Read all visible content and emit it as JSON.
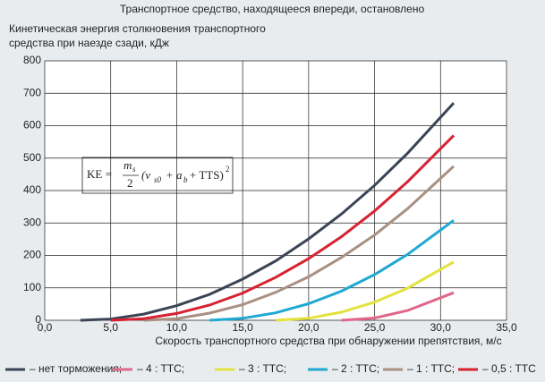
{
  "chart_data": {
    "type": "line",
    "title": "Транспортное средство, находящееся впереди, остановлено",
    "y_label_lines": [
      "Кинетическая энергия столкновения транспортного",
      "средства при наезде сзади, кДж"
    ],
    "x_label": "Скорость транспортного средства при обнаружении препятствия, м/с",
    "xlim": [
      0,
      35
    ],
    "ylim": [
      0,
      800
    ],
    "xticks": [
      {
        "value": 0,
        "label": "0,0"
      },
      {
        "value": 5,
        "label": "5,0"
      },
      {
        "value": 10,
        "label": "10,0"
      },
      {
        "value": 15,
        "label": "15,0"
      },
      {
        "value": 20,
        "label": "20,0"
      },
      {
        "value": 25,
        "label": "25,0"
      },
      {
        "value": 30,
        "label": "30,0"
      },
      {
        "value": 35,
        "label": "35,0"
      }
    ],
    "yticks": [
      0,
      100,
      200,
      300,
      400,
      500,
      600,
      700,
      800
    ],
    "grid": true,
    "annotation": {
      "lhs": "KE =",
      "numerator": "m",
      "numerator_sub": "s",
      "denominator": "2",
      "open": "(v",
      "sub1": "s0",
      "mid": "+ a",
      "sub2": "b",
      "tail": "+ TTS)",
      "exp": "2"
    },
    "series": [
      {
        "name": "– нет торможения;",
        "color": "#3b4456",
        "x": [
          2.7,
          5,
          7.5,
          10,
          12.5,
          15,
          17.5,
          20,
          22.5,
          25,
          27.5,
          31
        ],
        "values": [
          0,
          4,
          19,
          45,
          80,
          127,
          183,
          251,
          328,
          416,
          515,
          670
        ]
      },
      {
        "name": "– 4 : TTC;",
        "color": "#e1668a",
        "x": [
          22.5,
          25,
          27.5,
          31
        ],
        "values": [
          0,
          7,
          30,
          85
        ]
      },
      {
        "name": "– 3 : TTC;",
        "color": "#e4e23c",
        "x": [
          17.5,
          20,
          22.5,
          25,
          27.5,
          31
        ],
        "values": [
          0,
          6,
          25,
          56,
          99,
          180
        ]
      },
      {
        "name": "– 2 : TTC;",
        "color": "#1fa9d2",
        "x": [
          12.5,
          15,
          17.5,
          20,
          22.5,
          25,
          27.5,
          31
        ],
        "values": [
          0,
          6,
          23,
          51,
          90,
          141,
          203,
          308
        ]
      },
      {
        "name": "– 1 : TTC;",
        "color": "#a89082",
        "x": [
          7.5,
          10,
          12.5,
          15,
          17.5,
          20,
          22.5,
          25,
          27.5,
          31
        ],
        "values": [
          0,
          5,
          22,
          48,
          86,
          134,
          194,
          263,
          344,
          475
        ]
      },
      {
        "name": "– 0,5 : TTC",
        "color": "#d72231",
        "x": [
          5,
          7.5,
          10,
          12.5,
          15,
          17.5,
          20,
          22.5,
          25,
          27.5,
          31
        ],
        "values": [
          0,
          5,
          21,
          47,
          84,
          132,
          190,
          258,
          337,
          427,
          570
        ]
      }
    ]
  }
}
